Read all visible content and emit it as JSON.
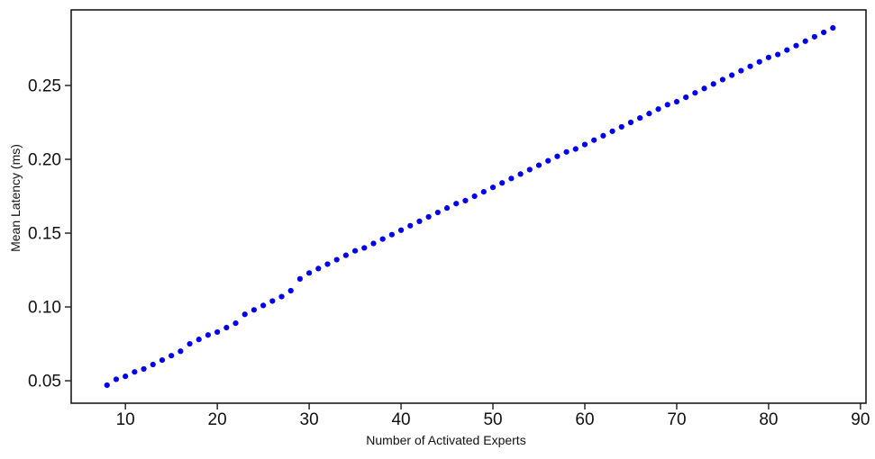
{
  "figure": {
    "background": "#ffffff",
    "axis_color": "#1a1a1a"
  },
  "chart_data": {
    "type": "scatter",
    "title": "",
    "xlabel": "Number of Activated Experts",
    "ylabel": "Mean Latency (ms)",
    "marker_color": "#0000ee",
    "marker_radius": 3.1,
    "grid": false,
    "legend_position": "none",
    "xlim": [
      4.1,
      90.6
    ],
    "ylim": [
      0.0348,
      0.3012
    ],
    "x_ticks": {
      "values": [
        10,
        20,
        30,
        40,
        50,
        60,
        70,
        80,
        90
      ],
      "labels": [
        "10",
        "20",
        "30",
        "40",
        "50",
        "60",
        "70",
        "80",
        "90"
      ]
    },
    "y_ticks": {
      "values": [
        0.05,
        0.1,
        0.15,
        0.2,
        0.25
      ],
      "labels": [
        "0.05",
        "0.10",
        "0.15",
        "0.20",
        "0.25"
      ]
    },
    "series": [
      {
        "name": "mean-latency",
        "x": [
          8,
          9,
          10,
          11,
          12,
          13,
          14,
          15,
          16,
          17,
          18,
          19,
          20,
          21,
          22,
          23,
          24,
          25,
          26,
          27,
          28,
          29,
          30,
          31,
          32,
          33,
          34,
          35,
          36,
          37,
          38,
          39,
          40,
          41,
          42,
          43,
          44,
          45,
          46,
          47,
          48,
          49,
          50,
          51,
          52,
          53,
          54,
          55,
          56,
          57,
          58,
          59,
          60,
          61,
          62,
          63,
          64,
          65,
          66,
          67,
          68,
          69,
          70,
          71,
          72,
          73,
          74,
          75,
          76,
          77,
          78,
          79,
          80,
          81,
          82,
          83,
          84,
          85,
          86,
          87
        ],
        "y": [
          0.047,
          0.051,
          0.053,
          0.056,
          0.058,
          0.061,
          0.064,
          0.067,
          0.07,
          0.075,
          0.078,
          0.081,
          0.083,
          0.086,
          0.089,
          0.095,
          0.098,
          0.101,
          0.104,
          0.107,
          0.111,
          0.119,
          0.123,
          0.126,
          0.129,
          0.132,
          0.135,
          0.138,
          0.14,
          0.143,
          0.146,
          0.149,
          0.152,
          0.155,
          0.158,
          0.161,
          0.164,
          0.167,
          0.17,
          0.172,
          0.175,
          0.178,
          0.181,
          0.184,
          0.187,
          0.19,
          0.193,
          0.196,
          0.199,
          0.202,
          0.205,
          0.207,
          0.21,
          0.213,
          0.216,
          0.219,
          0.222,
          0.225,
          0.228,
          0.231,
          0.234,
          0.237,
          0.239,
          0.242,
          0.245,
          0.248,
          0.251,
          0.254,
          0.257,
          0.26,
          0.263,
          0.266,
          0.269,
          0.271,
          0.274,
          0.277,
          0.28,
          0.283,
          0.286,
          0.289
        ]
      }
    ]
  }
}
